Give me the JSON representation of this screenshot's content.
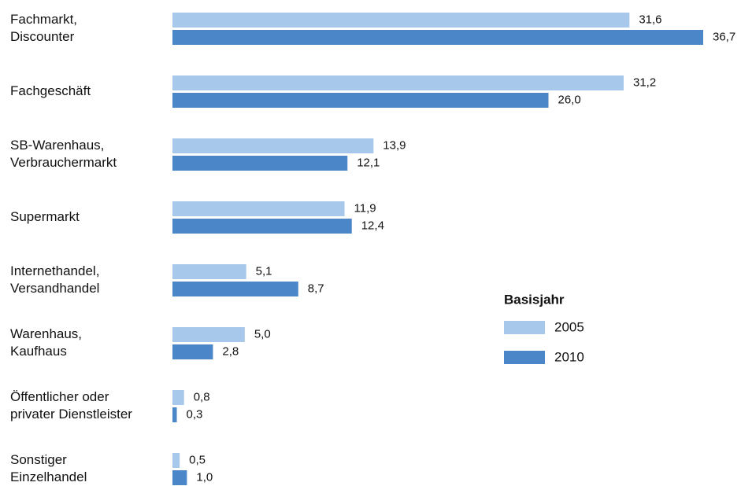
{
  "chart_data": {
    "type": "bar",
    "orientation": "horizontal",
    "categories": [
      [
        "Fachmarkt,",
        "Discounter"
      ],
      [
        "Fachgeschäft"
      ],
      [
        "SB-Warenhaus,",
        "Verbrauchermarkt"
      ],
      [
        "Supermarkt"
      ],
      [
        "Internethandel,",
        "Versandhandel"
      ],
      [
        "Warenhaus,",
        "Kaufhaus"
      ],
      [
        "Öffentlicher oder",
        "privater Dienstleister"
      ],
      [
        "Sonstiger",
        "Einzelhandel"
      ]
    ],
    "legend_title": "Basisjahr",
    "series": [
      {
        "name": "2005",
        "color": "#a7c8ea",
        "values": [
          31.6,
          31.2,
          13.9,
          11.9,
          5.1,
          5.0,
          0.8,
          0.5
        ],
        "value_labels": [
          "31,6",
          "31,2",
          "13,9",
          "11,9",
          "5,1",
          "5,0",
          "0,8",
          "0,5"
        ]
      },
      {
        "name": "2010",
        "color": "#4a86c8",
        "values": [
          36.7,
          26.0,
          12.1,
          12.4,
          8.7,
          2.8,
          0.3,
          1.0
        ],
        "value_labels": [
          "36,7",
          "26,0",
          "12,1",
          "12,4",
          "8,7",
          "2,8",
          "0,3",
          "1,0"
        ]
      }
    ]
  }
}
